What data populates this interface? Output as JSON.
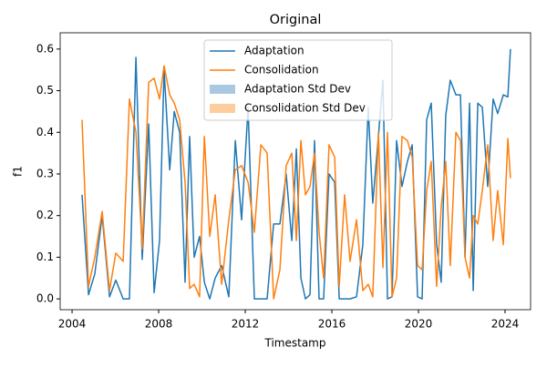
{
  "chart_data": {
    "type": "line",
    "title": "Original",
    "xlabel": "Timestamp",
    "ylabel": "f1",
    "x": [
      2004.46,
      2004.76,
      2005.05,
      2005.39,
      2005.73,
      2006.02,
      2006.36,
      2006.65,
      2006.95,
      2007.24,
      2007.54,
      2007.79,
      2008.04,
      2008.25,
      2008.51,
      2008.72,
      2008.97,
      2009.22,
      2009.43,
      2009.64,
      2009.89,
      2010.11,
      2010.36,
      2010.61,
      2010.91,
      2011.24,
      2011.54,
      2011.83,
      2012.13,
      2012.42,
      2012.72,
      2013.01,
      2013.31,
      2013.6,
      2013.89,
      2014.15,
      2014.36,
      2014.57,
      2014.78,
      2014.99,
      2015.2,
      2015.41,
      2015.62,
      2015.87,
      2016.13,
      2016.34,
      2016.59,
      2016.84,
      2017.14,
      2017.43,
      2017.68,
      2017.89,
      2018.15,
      2018.36,
      2018.57,
      2018.78,
      2018.99,
      2019.24,
      2019.49,
      2019.71,
      2019.96,
      2020.17,
      2020.38,
      2020.59,
      2020.84,
      2021.05,
      2021.26,
      2021.47,
      2021.73,
      2021.94,
      2022.15,
      2022.36,
      2022.53,
      2022.74,
      2022.95,
      2023.2,
      2023.45,
      2023.66,
      2023.92,
      2024.13,
      2024.25
    ],
    "series": [
      {
        "name": "Adaptation",
        "color": "#1f77b4",
        "values": [
          0.25,
          0.01,
          0.06,
          0.2,
          0.005,
          0.045,
          0,
          0,
          0.58,
          0.095,
          0.42,
          0.015,
          0.14,
          0.55,
          0.31,
          0.45,
          0.4,
          0.04,
          0.39,
          0.1,
          0.15,
          0.04,
          0,
          0.05,
          0.08,
          0.005,
          0.38,
          0.19,
          0.46,
          0,
          0,
          0,
          0.18,
          0.18,
          0.3,
          0.14,
          0.36,
          0.05,
          0,
          0.01,
          0.38,
          0,
          0,
          0.3,
          0.28,
          0,
          0,
          0,
          0.005,
          0.13,
          0.46,
          0.23,
          0.39,
          0.525,
          0,
          0.005,
          0.38,
          0.27,
          0.33,
          0.37,
          0.005,
          0,
          0.43,
          0.47,
          0.13,
          0.04,
          0.44,
          0.525,
          0.49,
          0.49,
          0.1,
          0.47,
          0.02,
          0.47,
          0.46,
          0.27,
          0.48,
          0.445,
          0.49,
          0.485,
          0.6
        ]
      },
      {
        "name": "Consolidation",
        "color": "#ff7f0e",
        "values": [
          0.43,
          0.03,
          0.1,
          0.21,
          0.02,
          0.11,
          0.09,
          0.48,
          0.4,
          0.12,
          0.52,
          0.53,
          0.48,
          0.56,
          0.49,
          0.47,
          0.43,
          0.28,
          0.025,
          0.035,
          0.005,
          0.39,
          0.15,
          0.25,
          0.035,
          0.19,
          0.31,
          0.32,
          0.28,
          0.16,
          0.37,
          0.35,
          0,
          0.07,
          0.32,
          0.35,
          0.14,
          0.38,
          0.25,
          0.27,
          0.35,
          0.16,
          0.05,
          0.37,
          0.34,
          0.03,
          0.25,
          0.09,
          0.19,
          0.02,
          0.035,
          0.005,
          0.4,
          0.075,
          0.4,
          0.005,
          0.05,
          0.39,
          0.38,
          0.34,
          0.08,
          0.07,
          0.26,
          0.33,
          0.03,
          0.22,
          0.33,
          0.08,
          0.4,
          0.38,
          0.1,
          0.05,
          0.2,
          0.18,
          0.26,
          0.37,
          0.14,
          0.26,
          0.13,
          0.385,
          0.29
        ]
      }
    ],
    "bands": [
      {
        "name": "Adaptation Std Dev",
        "color": "#a9c9e2"
      },
      {
        "name": "Consolidation Std Dev",
        "color": "#ffcc9e"
      }
    ],
    "xlim": [
      2003.45,
      2025.18
    ],
    "xticks": [
      2004,
      2008,
      2012,
      2016,
      2020,
      2024
    ],
    "ylim": [
      -0.026,
      0.639
    ],
    "yticks": [
      {
        "value": 0,
        "label": "0.0"
      },
      0.1,
      0.2,
      0.3,
      0.4,
      0.5,
      0.6
    ]
  }
}
